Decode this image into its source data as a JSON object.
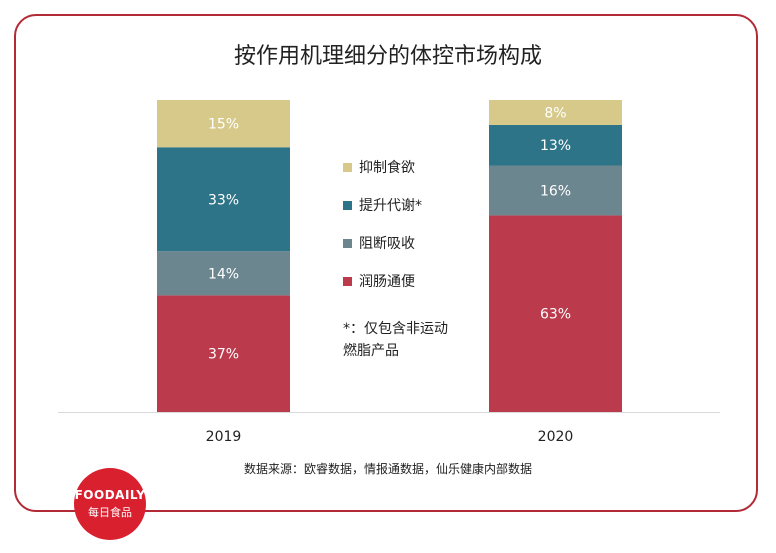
{
  "chart_data": {
    "type": "stacked-bar",
    "title": "按作用机理细分的体控市场构成",
    "categories": [
      "2019",
      "2020"
    ],
    "series": [
      {
        "name": "润肠通便",
        "values": [
          37,
          63
        ],
        "labels": [
          "37%",
          "63%"
        ],
        "color": "#bb3a4b"
      },
      {
        "name": "阻断吸收",
        "values": [
          14,
          16
        ],
        "labels": [
          "14%",
          "16%"
        ],
        "color": "#6c8690"
      },
      {
        "name": "提升代谢*",
        "values": [
          33,
          13
        ],
        "labels": [
          "33%",
          "13%"
        ],
        "color": "#2e7489"
      },
      {
        "name": "抑制食欲",
        "values": [
          15,
          8
        ],
        "labels": [
          "15%",
          "8%"
        ],
        "color": "#d7c98a"
      }
    ],
    "legend_order": [
      3,
      2,
      1,
      0
    ],
    "ylim": [
      0,
      100
    ],
    "legend_position": "center"
  },
  "note": {
    "line1": "*：仅包含非运动",
    "line2": "燃脂产品"
  },
  "source": "数据来源：欧睿数据，情报通数据，仙乐健康内部数据",
  "logo": {
    "top": "FOODAILY",
    "bottom": "每日食品"
  },
  "colors": {
    "frame": "#b22a36",
    "logo": "#d9202f",
    "axis": "#d9d9d9"
  }
}
